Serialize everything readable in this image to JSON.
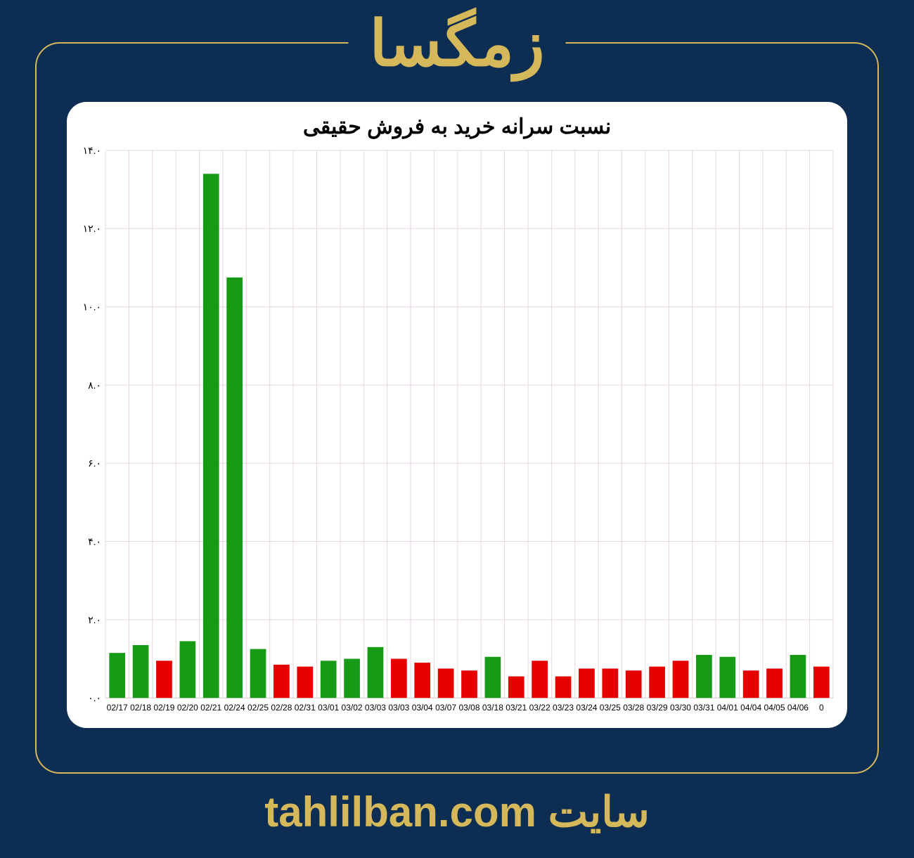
{
  "page": {
    "background_color": "#0d2d52",
    "frame_border_color": "#d4b85a",
    "heading": "زمگسا",
    "heading_color": "#d4b85a",
    "heading_fontsize": 90,
    "footer": "سایت tahlilban.com",
    "footer_color": "#d4b85a",
    "footer_fontsize": 60
  },
  "chart": {
    "type": "bar",
    "title": "نسبت سرانه خرید به فروش حقیقی",
    "title_fontsize": 30,
    "title_color": "#000000",
    "background_color": "#ffffff",
    "grid_color": "#e8d8d8",
    "ylim": [
      0,
      14
    ],
    "ytick_step": 2,
    "ytick_labels": [
      "۰.۰",
      "۲.۰",
      "۴.۰",
      "۶.۰",
      "۸.۰",
      "۱۰.۰",
      "۱۲.۰",
      "۱۴.۰"
    ],
    "bar_width": 0.68,
    "colors": {
      "green": "#179b17",
      "red": "#e60000"
    },
    "xlabel_fontsize": 12,
    "ylabel_fontsize": 14,
    "categories": [
      "02/17",
      "02/18",
      "02/19",
      "02/20",
      "02/21",
      "02/24",
      "02/25",
      "02/28",
      "02/31",
      "03/01",
      "03/02",
      "03/03",
      "03/03",
      "03/04",
      "03/07",
      "03/08",
      "03/18",
      "03/21",
      "03/22",
      "03/23",
      "03/24",
      "03/25",
      "03/28",
      "03/29",
      "03/30",
      "03/31",
      "04/01",
      "04/04",
      "04/05",
      "04/06",
      "0"
    ],
    "values": [
      1.15,
      1.35,
      0.95,
      1.45,
      13.4,
      10.75,
      1.25,
      0.85,
      0.8,
      0.95,
      1.0,
      1.3,
      1.0,
      0.9,
      0.75,
      0.7,
      1.05,
      0.55,
      0.95,
      0.55,
      0.75,
      0.75,
      0.7,
      0.8,
      0.95,
      1.1,
      1.05,
      0.7,
      0.75,
      1.1,
      0.8
    ],
    "bar_colors": [
      "green",
      "green",
      "red",
      "green",
      "green",
      "green",
      "green",
      "red",
      "red",
      "green",
      "green",
      "green",
      "red",
      "red",
      "red",
      "red",
      "green",
      "red",
      "red",
      "red",
      "red",
      "red",
      "red",
      "red",
      "red",
      "green",
      "green",
      "red",
      "red",
      "green",
      "red"
    ]
  }
}
